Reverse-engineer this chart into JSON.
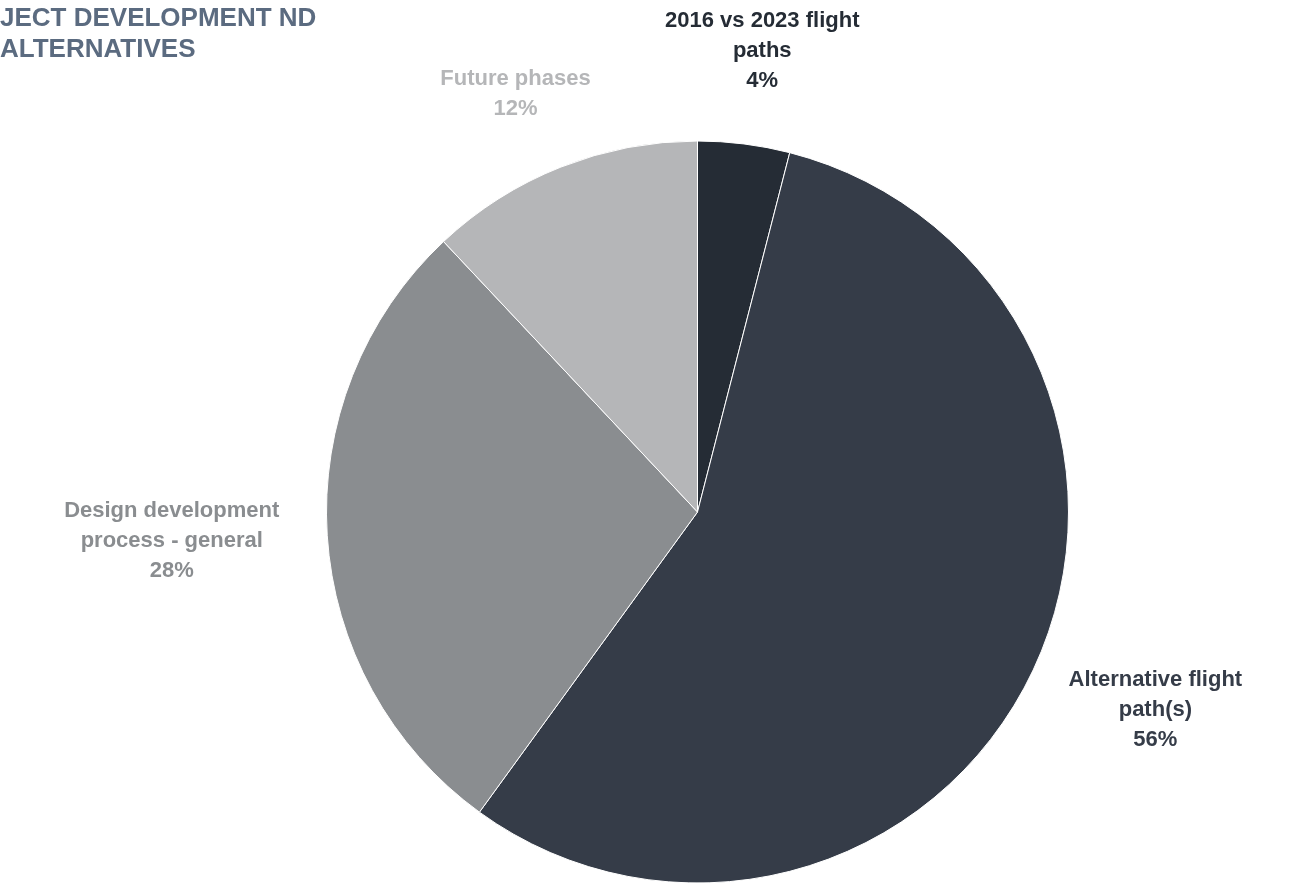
{
  "chart_data": {
    "type": "pie",
    "title": "JECT DEVELOPMENT ND ALTERNATIVES",
    "categories": [
      "2016 vs 2023 flight paths",
      "Alternative flight path(s)",
      "Design development process - general",
      "Future phases"
    ],
    "values": [
      4,
      56,
      28,
      12
    ],
    "colors": [
      "#252c35",
      "#353c48",
      "#8a8d90",
      "#b5b6b8"
    ],
    "value_labels": [
      "4%",
      "56%",
      "28%",
      "12%"
    ],
    "legend": false
  }
}
